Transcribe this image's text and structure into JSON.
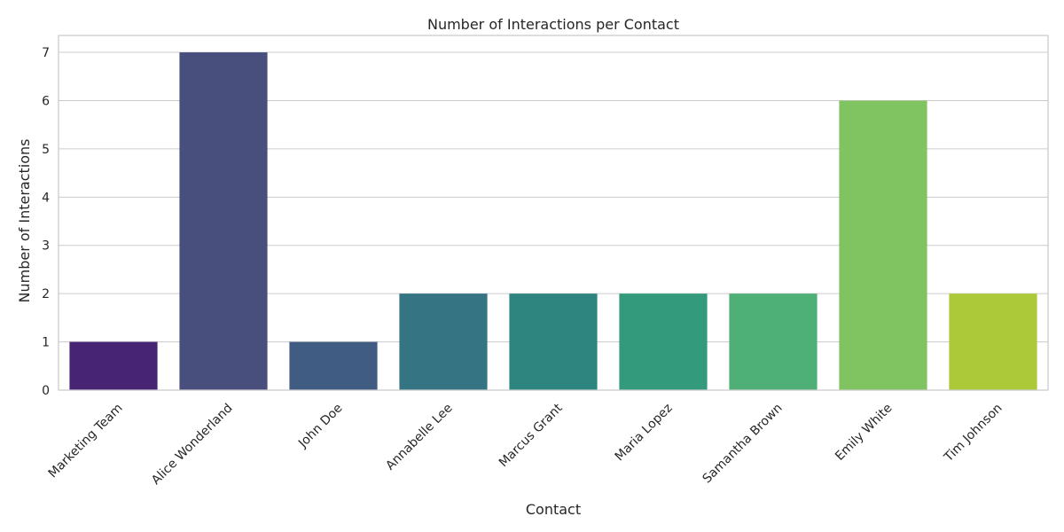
{
  "chart_data": {
    "type": "bar",
    "title": "Number of Interactions per Contact",
    "xlabel": "Contact",
    "ylabel": "Number of Interactions",
    "categories": [
      "Marketing Team",
      "Alice Wonderland",
      "John Doe",
      "Annabelle Lee",
      "Marcus Grant",
      "Maria Lopez",
      "Samantha Brown",
      "Emily White",
      "Tim Johnson"
    ],
    "values": [
      1,
      7,
      1,
      2,
      2,
      2,
      2,
      6,
      2
    ],
    "colors": [
      "#482475",
      "#484f7d",
      "#405c82",
      "#357483",
      "#2e8580",
      "#339a7b",
      "#4eb077",
      "#80c462",
      "#acc939"
    ],
    "ylim": [
      0,
      7.35
    ],
    "yticks": [
      0,
      1,
      2,
      3,
      4,
      5,
      6,
      7
    ],
    "grid": true,
    "legend": "none"
  }
}
